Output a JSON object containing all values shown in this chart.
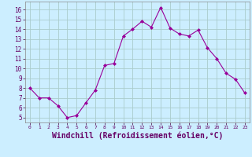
{
  "x": [
    0,
    1,
    2,
    3,
    4,
    5,
    6,
    7,
    8,
    9,
    10,
    11,
    12,
    13,
    14,
    15,
    16,
    17,
    18,
    19,
    20,
    21,
    22,
    23
  ],
  "y": [
    8.0,
    7.0,
    7.0,
    6.2,
    5.0,
    5.2,
    6.5,
    7.8,
    10.3,
    10.5,
    13.3,
    14.0,
    14.8,
    14.2,
    16.2,
    14.1,
    13.5,
    13.3,
    13.9,
    12.1,
    11.0,
    9.5,
    8.9,
    7.5
  ],
  "line_color": "#990099",
  "marker": "D",
  "marker_size": 2,
  "bg_color": "#cceeff",
  "grid_color": "#aacccc",
  "xlabel": "Windchill (Refroidissement éolien,°C)",
  "yticks": [
    5,
    6,
    7,
    8,
    9,
    10,
    11,
    12,
    13,
    14,
    15,
    16
  ],
  "xticks": [
    0,
    1,
    2,
    3,
    4,
    5,
    6,
    7,
    8,
    9,
    10,
    11,
    12,
    13,
    14,
    15,
    16,
    17,
    18,
    19,
    20,
    21,
    22,
    23
  ],
  "ylim": [
    4.5,
    16.8
  ],
  "xlim": [
    -0.5,
    23.5
  ]
}
